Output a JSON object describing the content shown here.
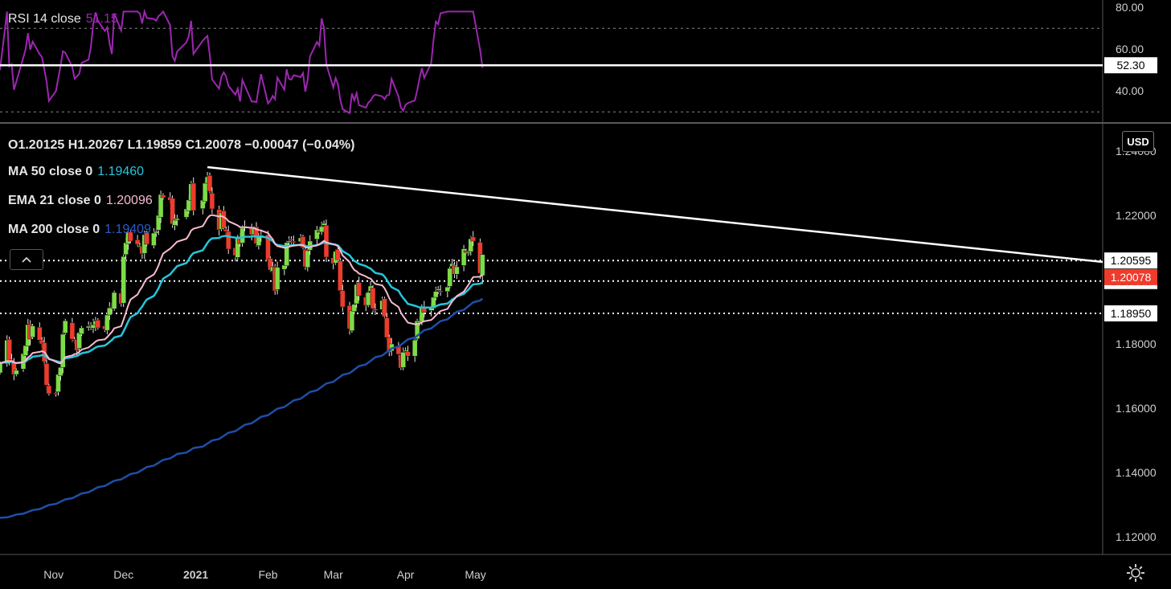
{
  "rsi_panel": {
    "label": "RSI 14 close",
    "value": "51.15",
    "color": "#9c27b0",
    "axis_labels": [
      "80.00",
      "60.00",
      "40.00"
    ],
    "level_label": "52.30"
  },
  "price_panel": {
    "ohlc": "O1.20125  H1.20267  L1.19859  C1.20078  −0.00047 (−0.04%)",
    "ma50": {
      "label": "MA 50 close 0",
      "value": "1.19460",
      "color": "#26c6da"
    },
    "ema21": {
      "label": "EMA 21 close 0",
      "value": "1.20096",
      "color": "#f8bbd0"
    },
    "ma200": {
      "label": "MA 200 close 0",
      "value": "1.19409",
      "color": "#1e4fa8"
    },
    "currency": "USD",
    "axis_labels": [
      "1.24000",
      "1.22000",
      "1.20000",
      "1.18000",
      "1.16000",
      "1.14000",
      "1.12000"
    ],
    "level_labels": [
      "1.20595",
      "1.20078",
      "1.19956",
      "1.18950"
    ],
    "last_price": "1.20078"
  },
  "x_axis": {
    "labels": [
      "Nov",
      "Dec",
      "2021",
      "Feb",
      "Mar",
      "Apr",
      "May"
    ]
  },
  "icons": {
    "collapse": "chevron-up-icon",
    "settings": "gear-icon"
  },
  "chart_data": {
    "type": "candlestick",
    "symbol_quote": "USD",
    "x": [
      "2020-10-09",
      "2020-10-12",
      "2020-10-13",
      "2020-10-14",
      "2020-10-15",
      "2020-10-16",
      "2020-10-19",
      "2020-10-20",
      "2020-10-21",
      "2020-10-22",
      "2020-10-23",
      "2020-10-26",
      "2020-10-27",
      "2020-10-28",
      "2020-10-29",
      "2020-10-30",
      "2020-11-02",
      "2020-11-03",
      "2020-11-04",
      "2020-11-05",
      "2020-11-06",
      "2020-11-09",
      "2020-11-10",
      "2020-11-11",
      "2020-11-12",
      "2020-11-13",
      "2020-11-16",
      "2020-11-17",
      "2020-11-18",
      "2020-11-19",
      "2020-11-20",
      "2020-11-23",
      "2020-11-24",
      "2020-11-25",
      "2020-11-26",
      "2020-11-27",
      "2020-11-30",
      "2020-12-01",
      "2020-12-02",
      "2020-12-03",
      "2020-12-04",
      "2020-12-07",
      "2020-12-08",
      "2020-12-09",
      "2020-12-10",
      "2020-12-11",
      "2020-12-14",
      "2020-12-15",
      "2020-12-16",
      "2020-12-17",
      "2020-12-18",
      "2020-12-21",
      "2020-12-22",
      "2020-12-23",
      "2020-12-24",
      "2020-12-28",
      "2020-12-29",
      "2020-12-30",
      "2020-12-31",
      "2021-01-04",
      "2021-01-05",
      "2021-01-06",
      "2021-01-07",
      "2021-01-08",
      "2021-01-11",
      "2021-01-12",
      "2021-01-13",
      "2021-01-14",
      "2021-01-15",
      "2021-01-18",
      "2021-01-19",
      "2021-01-20",
      "2021-01-21",
      "2021-01-22",
      "2021-01-25",
      "2021-01-26",
      "2021-01-27",
      "2021-01-28",
      "2021-01-29",
      "2021-02-01",
      "2021-02-02",
      "2021-02-03",
      "2021-02-04",
      "2021-02-05",
      "2021-02-08",
      "2021-02-09",
      "2021-02-10",
      "2021-02-11",
      "2021-02-12",
      "2021-02-15",
      "2021-02-16",
      "2021-02-17",
      "2021-02-18",
      "2021-02-19",
      "2021-02-22",
      "2021-02-23",
      "2021-02-24",
      "2021-02-25",
      "2021-02-26",
      "2021-03-01",
      "2021-03-02",
      "2021-03-03",
      "2021-03-04",
      "2021-03-05",
      "2021-03-08",
      "2021-03-09",
      "2021-03-10",
      "2021-03-11",
      "2021-03-12",
      "2021-03-15",
      "2021-03-16",
      "2021-03-17",
      "2021-03-18",
      "2021-03-19",
      "2021-03-22",
      "2021-03-23",
      "2021-03-24",
      "2021-03-25",
      "2021-03-26",
      "2021-03-29",
      "2021-03-30",
      "2021-03-31",
      "2021-04-01",
      "2021-04-02",
      "2021-04-05",
      "2021-04-06",
      "2021-04-07",
      "2021-04-08",
      "2021-04-09",
      "2021-04-12",
      "2021-04-13",
      "2021-04-14",
      "2021-04-15",
      "2021-04-16",
      "2021-04-19",
      "2021-04-20",
      "2021-04-21",
      "2021-04-22",
      "2021-04-23",
      "2021-04-26",
      "2021-04-27",
      "2021-04-28",
      "2021-04-29",
      "2021-04-30",
      "2021-05-03",
      "2021-05-04"
    ],
    "close": [
      1.174,
      1.1812,
      1.1745,
      1.1748,
      1.1705,
      1.1718,
      1.177,
      1.1795,
      1.186,
      1.1815,
      1.1856,
      1.1812,
      1.18,
      1.1745,
      1.1672,
      1.1645,
      1.1645,
      1.1705,
      1.1727,
      1.183,
      1.1872,
      1.1815,
      1.1812,
      1.178,
      1.1835,
      1.185,
      1.1855,
      1.1855,
      1.186,
      1.1872,
      1.185,
      1.1846,
      1.189,
      1.1912,
      1.1915,
      1.196,
      1.1925,
      1.2072,
      1.2115,
      1.2148,
      1.212,
      1.211,
      1.2105,
      1.208,
      1.214,
      1.211,
      1.2145,
      1.215,
      1.22,
      1.2265,
      1.2255,
      1.2247,
      1.2173,
      1.2185,
      1.219,
      1.222,
      1.2248,
      1.2298,
      1.2215,
      1.2247,
      1.23,
      1.232,
      1.2275,
      1.222,
      1.2155,
      1.2208,
      1.216,
      1.215,
      1.2095,
      1.2075,
      1.2133,
      1.2112,
      1.216,
      1.2166,
      1.214,
      1.216,
      1.2112,
      1.2135,
      1.2138,
      1.206,
      1.203,
      1.204,
      1.1965,
      1.2038,
      1.2045,
      1.2115,
      1.212,
      1.2123,
      1.2118,
      1.213,
      1.21,
      1.204,
      1.209,
      1.212,
      1.2155,
      1.2148,
      1.2165,
      1.2175,
      1.207,
      1.205,
      1.2088,
      1.2062,
      1.1966,
      1.1915,
      1.1847,
      1.1903,
      1.1923,
      1.1985,
      1.195,
      1.192,
      1.196,
      1.198,
      1.191,
      1.1905,
      1.1935,
      1.1885,
      1.182,
      1.1774,
      1.18,
      1.1768,
      1.1725,
      1.1774,
      1.178,
      1.1762,
      1.1812,
      1.1872,
      1.1872,
      1.1914,
      1.1898,
      1.1915,
      1.1945,
      1.1963,
      1.1971,
      1.1965,
      1.1977,
      1.2035,
      1.205,
      1.2017,
      1.204,
      1.2096,
      1.2085,
      1.2085,
      1.2127,
      1.212,
      1.202,
      1.2078
    ],
    "close_note": "daily closes estimated from the axis",
    "ma50_last": 1.1946,
    "ema21_last": 1.20096,
    "ma200_last": 1.19409,
    "ohlc_last": {
      "open": 1.20125,
      "high": 1.20267,
      "low": 1.19859,
      "close": 1.20078
    },
    "ylim": [
      1.115,
      1.248
    ],
    "price_levels": [
      1.20595,
      1.19956,
      1.1895
    ],
    "trendline": {
      "from": [
        "2021-01-06",
        1.235
      ],
      "to": [
        "2021-05-04",
        1.2045
      ]
    },
    "rsi": {
      "length": 14,
      "last": 51.15,
      "ylim": [
        27,
        82
      ],
      "bands": [
        70,
        30
      ],
      "level": 52.3
    }
  }
}
